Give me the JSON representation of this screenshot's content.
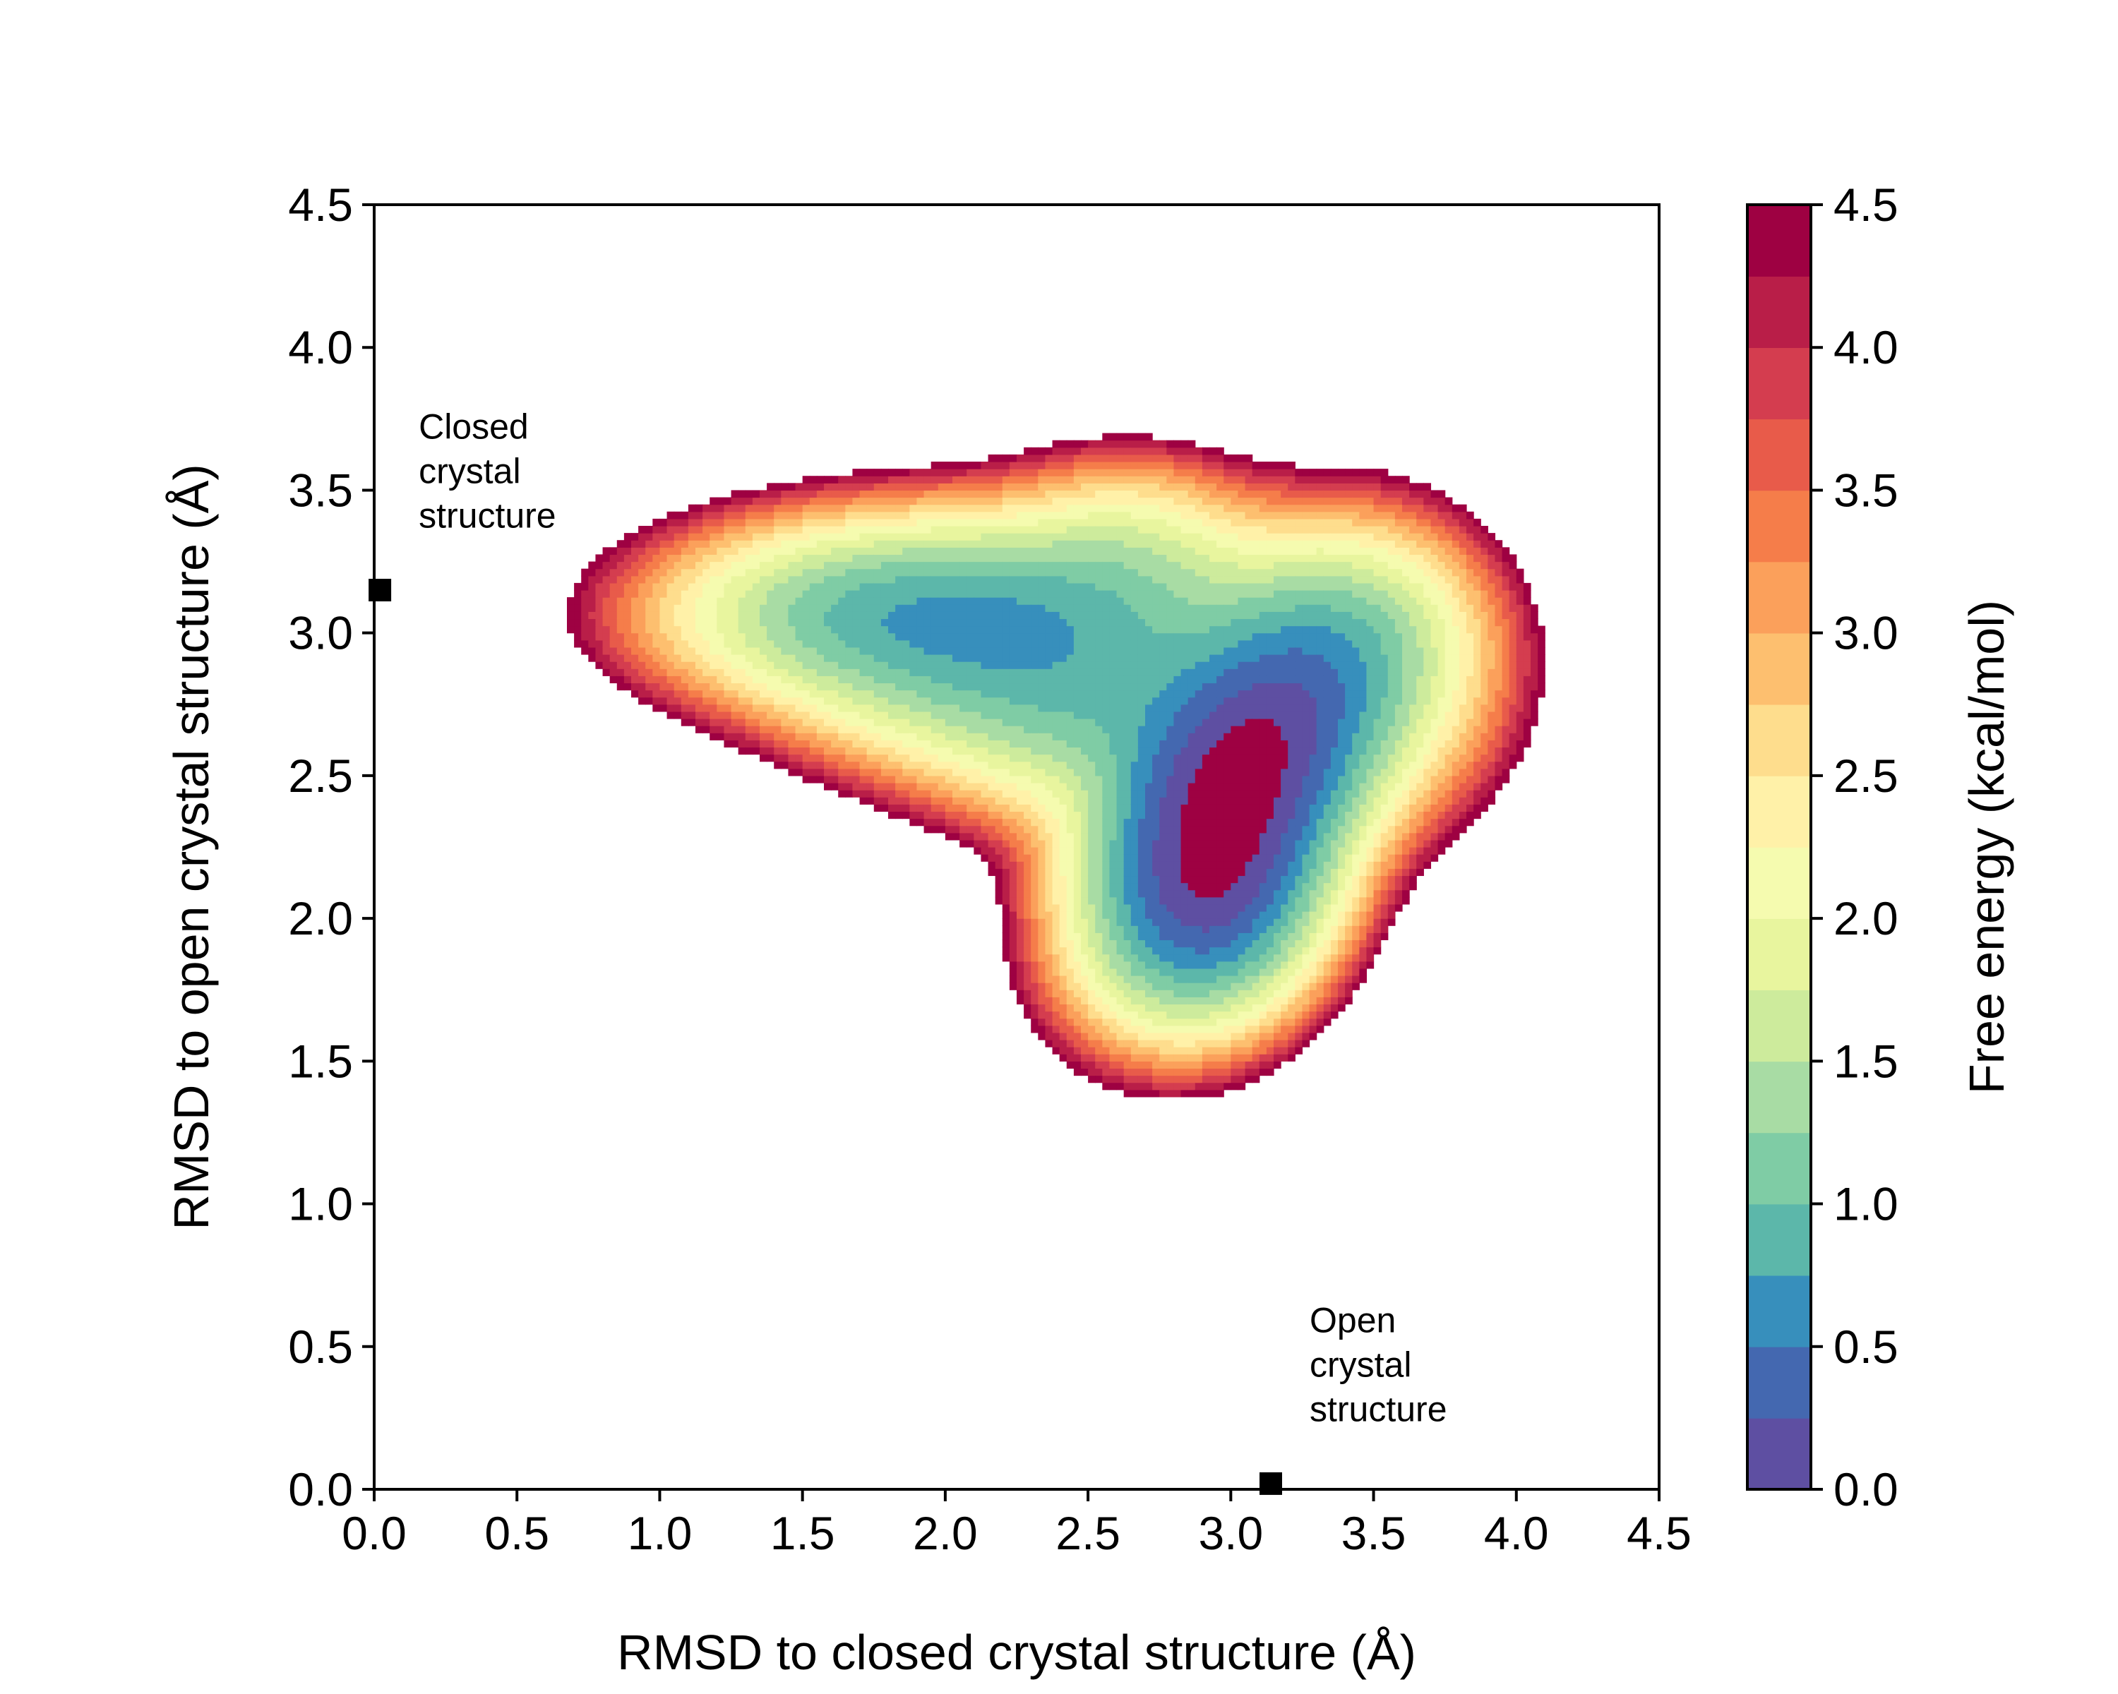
{
  "chart_data": {
    "type": "heatmap",
    "subtype": "filled-contour free energy landscape",
    "xlabel": "RMSD to closed crystal structure (Å)",
    "ylabel": "RMSD to open crystal structure (Å)",
    "xlim": [
      0.0,
      4.5
    ],
    "ylim": [
      0.0,
      4.5
    ],
    "x_ticks": [
      "0.0",
      "0.5",
      "1.0",
      "1.5",
      "2.0",
      "2.5",
      "3.0",
      "3.5",
      "4.0",
      "4.5"
    ],
    "y_ticks": [
      "0.0",
      "0.5",
      "1.0",
      "1.5",
      "2.0",
      "2.5",
      "3.0",
      "3.5",
      "4.0",
      "4.5"
    ],
    "grid": false,
    "colormap": "Spectral_r",
    "colorbar": {
      "label": "Free energy (kcal/mol)",
      "range": [
        0.0,
        4.5
      ],
      "ticks": [
        "0.0",
        "0.5",
        "1.0",
        "1.5",
        "2.0",
        "2.5",
        "3.0",
        "3.5",
        "4.0",
        "4.5"
      ],
      "levels": [
        0.0,
        0.25,
        0.5,
        0.75,
        1.0,
        1.25,
        1.5,
        1.75,
        2.0,
        2.25,
        2.5,
        2.75,
        3.0,
        3.25,
        3.5,
        3.75,
        4.0,
        4.25,
        4.5
      ],
      "colors": [
        "#5e4fa2",
        "#4468b0",
        "#378fbc",
        "#5cb7aa",
        "#7fcca5",
        "#a8dca4",
        "#cdeb9c",
        "#e8f59e",
        "#f5fbaf",
        "#fff1a8",
        "#fedd8d",
        "#fdbf6f",
        "#fba05b",
        "#f57d4a",
        "#e85b4a",
        "#d43d4f",
        "#b91e48",
        "#9e0142"
      ]
    },
    "basins": [
      {
        "x": 3.02,
        "y": 2.47,
        "sx": 0.27,
        "sy": 0.32,
        "rho": 0.45,
        "min_energy": 0.0,
        "note": "global minimum"
      },
      {
        "x": 2.95,
        "y": 2.05,
        "sx": 0.22,
        "sy": 0.24,
        "rho": 0.2,
        "min_energy": 0.6
      },
      {
        "x": 2.22,
        "y": 3.06,
        "sx": 0.5,
        "sy": 0.2,
        "rho": 0.0,
        "min_energy": 1.1
      },
      {
        "x": 1.7,
        "y": 3.07,
        "sx": 0.4,
        "sy": 0.17,
        "rho": 0.0,
        "min_energy": 1.55
      },
      {
        "x": 2.55,
        "y": 2.72,
        "sx": 0.34,
        "sy": 0.22,
        "rho": 0.0,
        "min_energy": 1.45
      },
      {
        "x": 3.35,
        "y": 2.85,
        "sx": 0.3,
        "sy": 0.28,
        "rho": 0.0,
        "min_energy": 1.6
      },
      {
        "x": 2.05,
        "y": 2.8,
        "sx": 0.35,
        "sy": 0.18,
        "rho": 0.0,
        "min_energy": 2.2
      },
      {
        "x": 3.5,
        "y": 3.0,
        "sx": 0.22,
        "sy": 0.2,
        "rho": 0.0,
        "min_energy": 2.6
      },
      {
        "x": 2.65,
        "y": 3.3,
        "sx": 0.25,
        "sy": 0.18,
        "rho": 0.0,
        "min_energy": 2.3
      }
    ],
    "annotations": [
      {
        "text": [
          "Closed",
          "crystal",
          "structure"
        ],
        "x": 0.02,
        "y": 3.15
      },
      {
        "text": [
          "Open",
          "crystal",
          "structure"
        ],
        "x": 3.14,
        "y": 0.02
      }
    ]
  }
}
